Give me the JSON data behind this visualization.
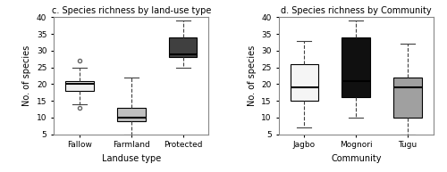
{
  "left_title": "c. Species richness by land-use type",
  "right_title": "d. Species richness by Community",
  "left_xlabel": "Landuse type",
  "right_xlabel": "Community",
  "ylabel": "No. of species",
  "ylim": [
    5,
    40
  ],
  "yticks": [
    5,
    10,
    15,
    20,
    25,
    30,
    35,
    40
  ],
  "left_categories": [
    "Fallow",
    "Farmland",
    "Protected"
  ],
  "left_box_colors": [
    "#f0f0f0",
    "#c0c0c0",
    "#404040"
  ],
  "left_boxes": [
    {
      "q1": 18,
      "median": 20,
      "q3": 21,
      "whislo": 14,
      "whishi": 25,
      "fliers": [
        13,
        27
      ]
    },
    {
      "q1": 9,
      "median": 10,
      "q3": 13,
      "whislo": 5,
      "whishi": 22,
      "fliers": []
    },
    {
      "q1": 28,
      "median": 29,
      "q3": 34,
      "whislo": 25,
      "whishi": 39,
      "fliers": []
    }
  ],
  "right_categories": [
    "Jagbo",
    "Mognori",
    "Tugu"
  ],
  "right_box_colors": [
    "#f5f5f5",
    "#101010",
    "#a0a0a0"
  ],
  "right_boxes": [
    {
      "q1": 15,
      "median": 19,
      "q3": 26,
      "whislo": 7,
      "whishi": 33,
      "fliers": []
    },
    {
      "q1": 16,
      "median": 21,
      "q3": 34,
      "whislo": 10,
      "whishi": 39,
      "fliers": []
    },
    {
      "q1": 10,
      "median": 19,
      "q3": 22,
      "whislo": 5,
      "whishi": 32,
      "fliers": []
    }
  ],
  "title_fontsize": 7,
  "label_fontsize": 7,
  "tick_fontsize": 6.5,
  "medianline_color": "#000000",
  "whisker_color": "#404040",
  "flier_marker": "o",
  "flier_size": 3
}
